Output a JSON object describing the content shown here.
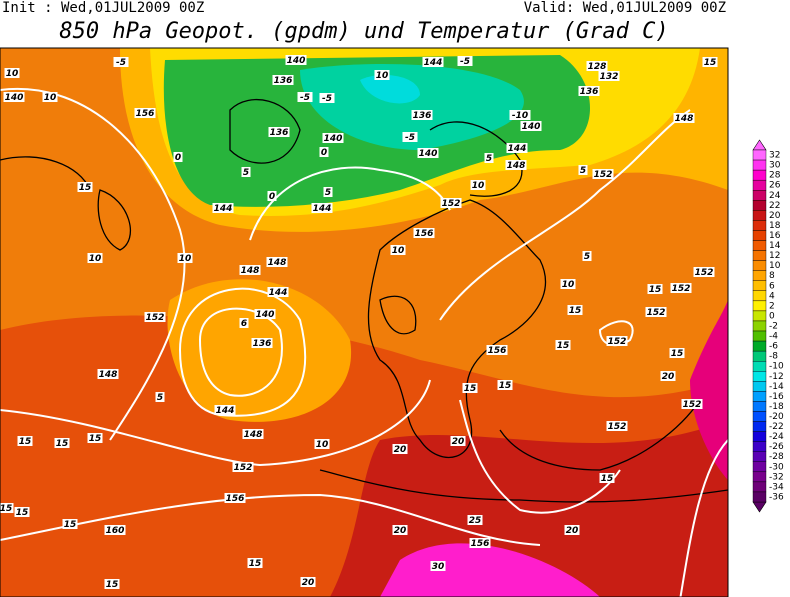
{
  "header": {
    "init": "Init : Wed,01JUL2009 00Z",
    "valid": "Valid: Wed,01JUL2009 00Z",
    "title": "850 hPa Geopot. (gpdm) und Temperatur (Grad C)"
  },
  "colorbar": {
    "levels": [
      {
        "value": 32,
        "color": "#ff66ff"
      },
      {
        "value": 30,
        "color": "#ff33f0"
      },
      {
        "value": 28,
        "color": "#ff00cc"
      },
      {
        "value": 26,
        "color": "#e6009e"
      },
      {
        "value": 24,
        "color": "#cc0066"
      },
      {
        "value": 22,
        "color": "#b3002d"
      },
      {
        "value": 20,
        "color": "#c81414"
      },
      {
        "value": 18,
        "color": "#dc2d0a"
      },
      {
        "value": 16,
        "color": "#e64100"
      },
      {
        "value": 14,
        "color": "#f05a00"
      },
      {
        "value": 12,
        "color": "#f57300"
      },
      {
        "value": 10,
        "color": "#fa8c00"
      },
      {
        "value": 8,
        "color": "#ffa500"
      },
      {
        "value": 6,
        "color": "#ffbe00"
      },
      {
        "value": 4,
        "color": "#ffd700"
      },
      {
        "value": 2,
        "color": "#fff000"
      },
      {
        "value": 0,
        "color": "#c8e600"
      },
      {
        "value": -2,
        "color": "#8cd200"
      },
      {
        "value": -4,
        "color": "#50be00"
      },
      {
        "value": -6,
        "color": "#00aa28"
      },
      {
        "value": -8,
        "color": "#00c878"
      },
      {
        "value": -10,
        "color": "#00dcb4"
      },
      {
        "value": -12,
        "color": "#00e6e6"
      },
      {
        "value": -14,
        "color": "#00c8f0"
      },
      {
        "value": -16,
        "color": "#00a0ff"
      },
      {
        "value": -18,
        "color": "#0078ff"
      },
      {
        "value": -20,
        "color": "#0050ff"
      },
      {
        "value": -22,
        "color": "#0028f0"
      },
      {
        "value": -24,
        "color": "#1400dc"
      },
      {
        "value": -26,
        "color": "#3c00c8"
      },
      {
        "value": -28,
        "color": "#5a00b4"
      },
      {
        "value": -30,
        "color": "#6e00a0"
      },
      {
        "value": -32,
        "color": "#78008c"
      },
      {
        "value": -34,
        "color": "#6e0078"
      },
      {
        "value": -36,
        "color": "#5a0064"
      }
    ]
  },
  "map": {
    "contour_labels": [
      "10",
      "140",
      "10",
      "156",
      "15",
      "10",
      "10",
      "152",
      "148",
      "5",
      "15",
      "15",
      "15",
      "15",
      "15",
      "15",
      "160",
      "15",
      "15",
      "20",
      "20",
      "20",
      "20",
      "25",
      "156",
      "30",
      "20",
      "15",
      "20",
      "152",
      "15",
      "152",
      "152",
      "152",
      "152",
      "15",
      "152",
      "10",
      "15",
      "15",
      "156",
      "15",
      "15",
      "10",
      "156",
      "152",
      "10",
      "148",
      "144",
      "152",
      "5",
      "148",
      "15",
      "136",
      "132",
      "128",
      "-10",
      "140",
      "-5",
      "144",
      "10",
      "136",
      "-5",
      "140",
      "140",
      "136",
      "-5",
      "-5",
      "136",
      "140",
      "0",
      "5",
      "0",
      "0",
      "5",
      "144",
      "144",
      "148",
      "148",
      "144",
      "140",
      "6",
      "136",
      "144",
      "148",
      "152",
      "156",
      "10",
      "5",
      "-5",
      "5"
    ]
  }
}
